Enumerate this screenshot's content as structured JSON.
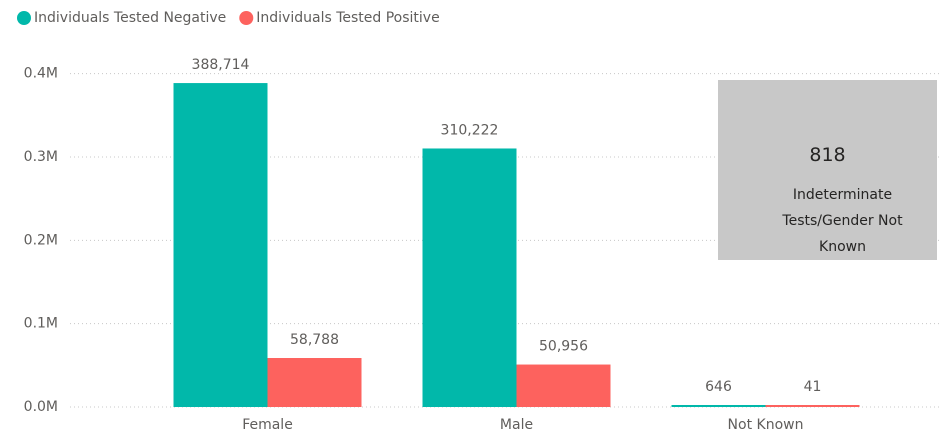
{
  "chart_data": {
    "type": "bar",
    "categories": [
      "Female",
      "Male",
      "Not Known"
    ],
    "series": [
      {
        "name": "Individuals Tested Negative",
        "color": "#01B8AA",
        "values": [
          388714,
          310222,
          646
        ],
        "value_labels": [
          "388,714",
          "310,222",
          "646"
        ]
      },
      {
        "name": "Individuals Tested Positive",
        "color": "#FD625E",
        "values": [
          58788,
          50956,
          41
        ],
        "value_labels": [
          "58,788",
          "50,956",
          "41"
        ]
      }
    ],
    "ylim": [
      0,
      420000
    ],
    "yticks": [
      {
        "value": 0,
        "label": "0.0M"
      },
      {
        "value": 100000,
        "label": "0.1M"
      },
      {
        "value": 200000,
        "label": "0.2M"
      },
      {
        "value": 300000,
        "label": "0.3M"
      },
      {
        "value": 400000,
        "label": "0.4M"
      }
    ],
    "grid": true,
    "legend": "top-left"
  },
  "card": {
    "value": 818,
    "label": "Indeterminate Tests/Gender Not Known"
  }
}
